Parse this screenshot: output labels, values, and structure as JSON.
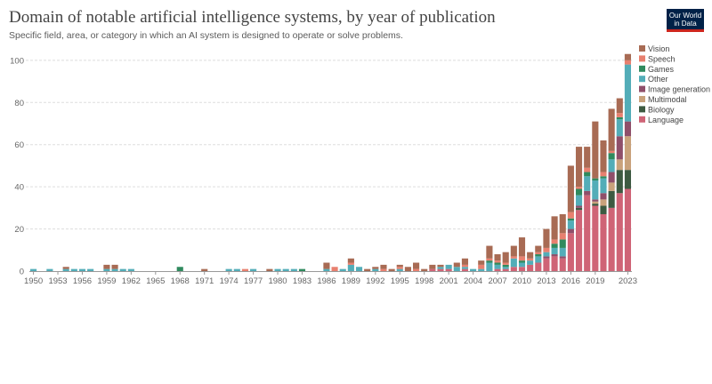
{
  "header": {
    "title": "Domain of notable artificial intelligence systems, by year of publication",
    "subtitle": "Specific field, area, or category in which an AI system is designed to operate or solve problems.",
    "logo_line1": "Our World",
    "logo_line2": "in Data"
  },
  "colors": {
    "Language": "#cf6476",
    "Biology": "#3d5a41",
    "Multimodal": "#c9a27b",
    "Image generation": "#8f4f6a",
    "Other": "#53adb8",
    "Games": "#2f8a5e",
    "Speech": "#e8806f",
    "Vision": "#a86b54"
  },
  "chart_data": {
    "type": "bar",
    "stacked": true,
    "categories": [
      1950,
      1951,
      1952,
      1953,
      1954,
      1955,
      1956,
      1957,
      1958,
      1959,
      1960,
      1961,
      1962,
      1963,
      1964,
      1965,
      1966,
      1967,
      1968,
      1969,
      1970,
      1971,
      1972,
      1973,
      1974,
      1975,
      1976,
      1977,
      1978,
      1979,
      1980,
      1981,
      1982,
      1983,
      1984,
      1985,
      1986,
      1987,
      1988,
      1989,
      1990,
      1991,
      1992,
      1993,
      1994,
      1995,
      1996,
      1997,
      1998,
      1999,
      2000,
      2001,
      2002,
      2003,
      2004,
      2005,
      2006,
      2007,
      2008,
      2009,
      2010,
      2011,
      2012,
      2013,
      2014,
      2015,
      2016,
      2017,
      2018,
      2019,
      2020,
      2021,
      2022,
      2023
    ],
    "x_ticks": [
      1950,
      1953,
      1956,
      1959,
      1962,
      1965,
      1968,
      1971,
      1974,
      1977,
      1980,
      1983,
      1986,
      1989,
      1992,
      1995,
      1998,
      2001,
      2004,
      2007,
      2010,
      2013,
      2016,
      2019,
      2023
    ],
    "ylim": [
      0,
      105
    ],
    "y_ticks": [
      0,
      20,
      40,
      60,
      80,
      100
    ],
    "grid": "horizontal",
    "legend_position": "right",
    "series": [
      {
        "name": "Language",
        "values": [
          0,
          0,
          0,
          0,
          0,
          0,
          0,
          0,
          0,
          0,
          0,
          0,
          0,
          0,
          0,
          0,
          0,
          0,
          0,
          0,
          0,
          0,
          0,
          0,
          0,
          0,
          0,
          0,
          0,
          0,
          0,
          0,
          0,
          0,
          0,
          0,
          0,
          0,
          0,
          0,
          0,
          0,
          0,
          0,
          0,
          0,
          0,
          0,
          0,
          1,
          1,
          1,
          0,
          1,
          0,
          0,
          0,
          1,
          1,
          2,
          2,
          3,
          4,
          6,
          7,
          6,
          18,
          29,
          36,
          31,
          27,
          30,
          37,
          39
        ]
      },
      {
        "name": "Biology",
        "values": [
          0,
          0,
          0,
          0,
          0,
          0,
          0,
          0,
          0,
          0,
          0,
          0,
          0,
          0,
          0,
          0,
          0,
          0,
          0,
          0,
          0,
          0,
          0,
          0,
          0,
          0,
          0,
          0,
          0,
          0,
          0,
          0,
          0,
          0,
          0,
          0,
          0,
          0,
          0,
          0,
          0,
          0,
          0,
          0,
          0,
          0,
          0,
          0,
          0,
          0,
          0,
          0,
          0,
          0,
          0,
          0,
          0,
          0,
          0,
          0,
          0,
          0,
          0,
          0,
          0,
          0,
          0,
          1,
          0,
          1,
          4,
          8,
          11,
          9
        ]
      },
      {
        "name": "Multimodal",
        "values": [
          0,
          0,
          0,
          0,
          0,
          0,
          0,
          0,
          0,
          0,
          0,
          0,
          0,
          0,
          0,
          0,
          0,
          0,
          0,
          0,
          0,
          0,
          0,
          0,
          0,
          0,
          0,
          0,
          0,
          0,
          0,
          0,
          0,
          0,
          0,
          0,
          0,
          0,
          0,
          0,
          0,
          0,
          0,
          0,
          0,
          0,
          0,
          0,
          0,
          0,
          0,
          0,
          0,
          0,
          0,
          0,
          0,
          0,
          0,
          0,
          0,
          0,
          0,
          0,
          0,
          0,
          0,
          0,
          0,
          1,
          3,
          4,
          5,
          16
        ]
      },
      {
        "name": "Image generation",
        "values": [
          0,
          0,
          0,
          0,
          0,
          0,
          0,
          0,
          0,
          0,
          0,
          0,
          0,
          0,
          0,
          0,
          0,
          0,
          0,
          0,
          0,
          0,
          0,
          0,
          0,
          0,
          0,
          0,
          0,
          0,
          0,
          0,
          0,
          0,
          0,
          0,
          0,
          0,
          0,
          0,
          0,
          0,
          0,
          0,
          0,
          0,
          0,
          0,
          0,
          0,
          0,
          0,
          0,
          0,
          0,
          0,
          0,
          0,
          0,
          0,
          0,
          0,
          0,
          1,
          1,
          1,
          2,
          1,
          2,
          1,
          3,
          5,
          11,
          7
        ]
      },
      {
        "name": "Other",
        "values": [
          1,
          0,
          1,
          0,
          1,
          1,
          1,
          1,
          0,
          1,
          1,
          1,
          1,
          0,
          0,
          0,
          0,
          0,
          0,
          0,
          0,
          0,
          0,
          0,
          1,
          1,
          0,
          1,
          0,
          0,
          1,
          1,
          1,
          0,
          0,
          0,
          1,
          0,
          1,
          3,
          2,
          0,
          1,
          0,
          0,
          1,
          0,
          0,
          0,
          0,
          1,
          2,
          2,
          1,
          1,
          1,
          4,
          2,
          1,
          4,
          2,
          2,
          3,
          2,
          3,
          4,
          4,
          5,
          7,
          9,
          7,
          6,
          8,
          27
        ]
      },
      {
        "name": "Games",
        "values": [
          0,
          0,
          0,
          0,
          0,
          0,
          0,
          0,
          0,
          0,
          0,
          0,
          0,
          0,
          0,
          0,
          0,
          0,
          2,
          0,
          0,
          0,
          0,
          0,
          0,
          0,
          0,
          0,
          0,
          0,
          0,
          0,
          0,
          1,
          0,
          0,
          0,
          0,
          0,
          0,
          0,
          0,
          0,
          0,
          0,
          0,
          0,
          0,
          0,
          0,
          0,
          0,
          0,
          0,
          0,
          0,
          1,
          1,
          1,
          0,
          1,
          0,
          1,
          0,
          2,
          4,
          1,
          3,
          2,
          1,
          1,
          3,
          1,
          0
        ]
      },
      {
        "name": "Speech",
        "values": [
          0,
          0,
          0,
          0,
          0,
          0,
          0,
          0,
          0,
          0,
          0,
          0,
          0,
          0,
          0,
          0,
          0,
          0,
          0,
          0,
          0,
          0,
          0,
          0,
          0,
          0,
          1,
          0,
          0,
          0,
          0,
          0,
          0,
          0,
          0,
          0,
          0,
          2,
          0,
          1,
          0,
          0,
          0,
          1,
          0,
          1,
          0,
          1,
          0,
          0,
          0,
          0,
          0,
          1,
          0,
          2,
          1,
          1,
          1,
          1,
          2,
          1,
          1,
          2,
          2,
          3,
          3,
          1,
          2,
          0,
          2,
          1,
          2,
          2
        ]
      },
      {
        "name": "Vision",
        "values": [
          0,
          0,
          0,
          0,
          1,
          0,
          0,
          0,
          0,
          2,
          2,
          0,
          0,
          0,
          0,
          0,
          0,
          0,
          0,
          0,
          0,
          1,
          0,
          0,
          0,
          0,
          0,
          0,
          0,
          1,
          0,
          0,
          0,
          0,
          0,
          0,
          3,
          0,
          0,
          2,
          0,
          1,
          1,
          2,
          1,
          1,
          2,
          3,
          1,
          2,
          1,
          0,
          2,
          3,
          0,
          2,
          6,
          3,
          5,
          5,
          9,
          3,
          3,
          9,
          11,
          9,
          22,
          19,
          10,
          27,
          15,
          20,
          7,
          3
        ]
      }
    ],
    "legend_order": [
      "Vision",
      "Speech",
      "Games",
      "Other",
      "Image generation",
      "Multimodal",
      "Biology",
      "Language"
    ]
  }
}
